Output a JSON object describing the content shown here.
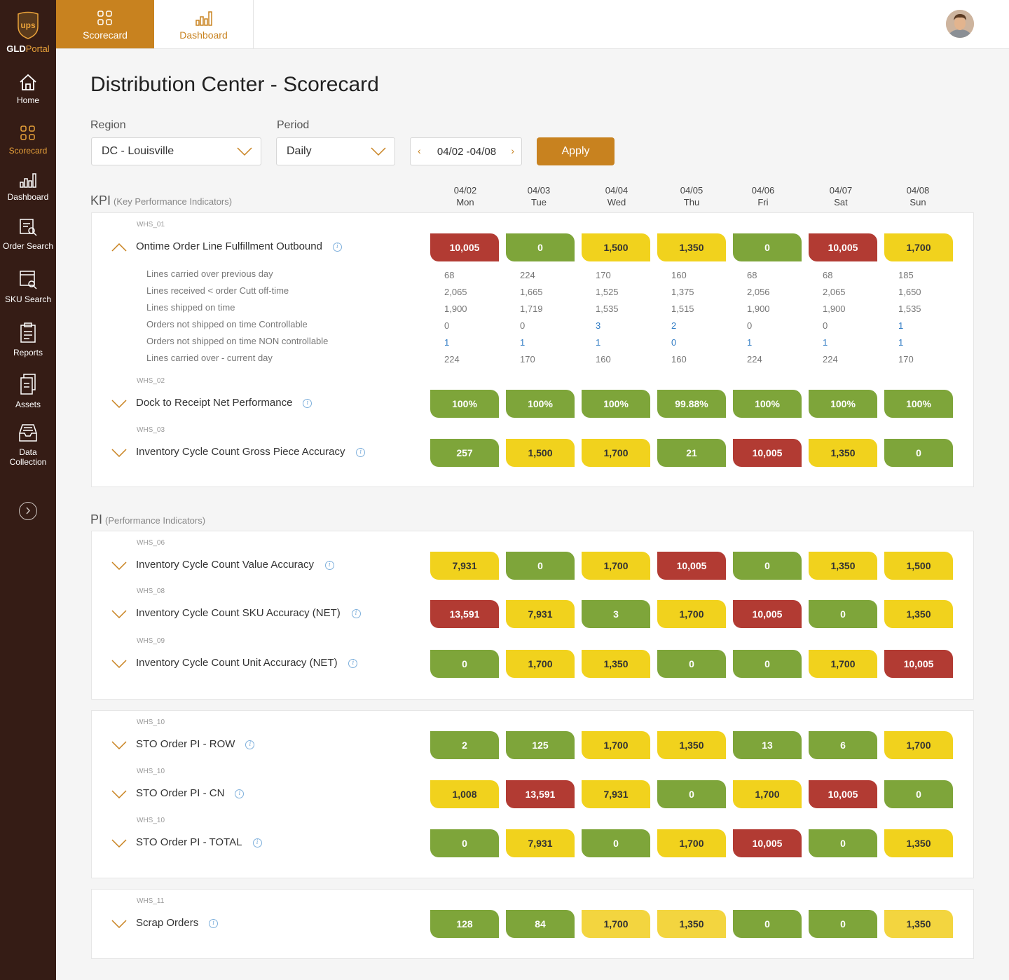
{
  "brand": {
    "logo_text": "GLD",
    "logo_portal": "Portal",
    "shield_text": "ups"
  },
  "sidebar": {
    "items": [
      {
        "label": "Home",
        "icon": "home-icon"
      },
      {
        "label": "Scorecard",
        "icon": "scorecard-icon",
        "active": true
      },
      {
        "label": "Dashboard",
        "icon": "dashboard-icon"
      },
      {
        "label": "Order Search",
        "icon": "order-search-icon"
      },
      {
        "label": "SKU Search",
        "icon": "sku-search-icon"
      },
      {
        "label": "Reports",
        "icon": "reports-icon"
      },
      {
        "label": "Assets",
        "icon": "assets-icon"
      },
      {
        "label": "Data Collection",
        "label_line1": "Data",
        "label_line2": "Collection",
        "icon": "data-collection-icon"
      }
    ]
  },
  "topbar": {
    "tabs": [
      {
        "label": "Scorecard",
        "active": true
      },
      {
        "label": "Dashboard",
        "active": false
      }
    ]
  },
  "page": {
    "title": "Distribution Center - Scorecard"
  },
  "filters": {
    "region_label": "Region",
    "region_value": "DC - Louisville",
    "period_label": "Period",
    "period_value": "Daily",
    "date_range": "04/02 -04/08",
    "prev": "‹",
    "next": "›",
    "apply_label": "Apply"
  },
  "colors": {
    "green": "#7ea53a",
    "red": "#b23b33",
    "yellow": "#f1d21d",
    "accent": "#c8821f",
    "sidebar": "#351c15"
  },
  "days": [
    {
      "date": "04/02",
      "day": "Mon"
    },
    {
      "date": "04/03",
      "day": "Tue"
    },
    {
      "date": "04/04",
      "day": "Wed"
    },
    {
      "date": "04/05",
      "day": "Thu"
    },
    {
      "date": "04/06",
      "day": "Fri"
    },
    {
      "date": "04/07",
      "day": "Sat"
    },
    {
      "date": "04/08",
      "day": "Sun"
    }
  ],
  "kpi": {
    "title": "KPI",
    "subtitle": "(Key Performance Indicators)",
    "rows": [
      {
        "code": "WHS_01",
        "title": "Ontime Order Line Fulfillment Outbound",
        "expanded": true,
        "values": [
          "10,005",
          "0",
          "1,500",
          "1,350",
          "0",
          "10,005",
          "1,700"
        ],
        "status": [
          "red",
          "green",
          "yellow",
          "yellow",
          "green",
          "red",
          "yellow"
        ],
        "details": [
          {
            "label": "Lines carried over previous day",
            "values": [
              "68",
              "224",
              "170",
              "160",
              "68",
              "68",
              "185"
            ]
          },
          {
            "label": "Lines received < order Cutt off-time",
            "values": [
              "2,065",
              "1,665",
              "1,525",
              "1,375",
              "2,056",
              "2,065",
              "1,650"
            ]
          },
          {
            "label": "Lines shipped on time",
            "values": [
              "1,900",
              "1,719",
              "1,535",
              "1,515",
              "1,900",
              "1,900",
              "1,535"
            ]
          },
          {
            "label": "Orders not shipped on time Controllable",
            "values": [
              "0",
              "0",
              "3",
              "2",
              "0",
              "0",
              "1"
            ]
          },
          {
            "label": "Orders not shipped on time NON controllable",
            "values": [
              "1",
              "1",
              "1",
              "0",
              "1",
              "1",
              "1"
            ]
          },
          {
            "label": "Lines carried over - current day",
            "values": [
              "224",
              "170",
              "160",
              "160",
              "224",
              "224",
              "170"
            ]
          }
        ]
      },
      {
        "code": "WHS_02",
        "title": "Dock to Receipt Net Performance",
        "values": [
          "100%",
          "100%",
          "100%",
          "99.88%",
          "100%",
          "100%",
          "100%"
        ],
        "status": [
          "green",
          "green",
          "green",
          "green",
          "green",
          "green",
          "green"
        ]
      },
      {
        "code": "WHS_03",
        "title": "Inventory Cycle Count Gross Piece Accuracy",
        "values": [
          "257",
          "1,500",
          "1,700",
          "21",
          "10,005",
          "1,350",
          "0"
        ],
        "status": [
          "green",
          "yellow",
          "yellow",
          "green",
          "red",
          "yellow",
          "green"
        ]
      }
    ]
  },
  "pi": {
    "title": "PI",
    "subtitle": "(Performance Indicators)",
    "groups": [
      [
        {
          "code": "WHS_06",
          "title": "Inventory Cycle Count Value Accuracy",
          "values": [
            "7,931",
            "0",
            "1,700",
            "10,005",
            "0",
            "1,350",
            "1,500"
          ],
          "status": [
            "yellow",
            "green",
            "yellow",
            "red",
            "green",
            "yellow",
            "yellow"
          ]
        },
        {
          "code": "WHS_08",
          "title": "Inventory Cycle Count SKU Accuracy (NET)",
          "values": [
            "13,591",
            "7,931",
            "3",
            "1,700",
            "10,005",
            "0",
            "1,350"
          ],
          "status": [
            "red",
            "yellow",
            "green",
            "yellow",
            "red",
            "green",
            "yellow"
          ]
        },
        {
          "code": "WHS_09",
          "title": "Inventory Cycle Count Unit Accuracy (NET)",
          "values": [
            "0",
            "1,700",
            "1,350",
            "0",
            "0",
            "1,700",
            "10,005"
          ],
          "status": [
            "green",
            "yellow",
            "yellow",
            "green",
            "green",
            "yellow",
            "red"
          ]
        }
      ],
      [
        {
          "code": "WHS_10",
          "title": "STO Order PI - ROW",
          "values": [
            "2",
            "125",
            "1,700",
            "1,350",
            "13",
            "6",
            "1,700"
          ],
          "status": [
            "green",
            "green",
            "yellow",
            "yellow",
            "green",
            "green",
            "yellow"
          ]
        },
        {
          "code": "WHS_10",
          "title": "STO Order PI - CN",
          "values": [
            "1,008",
            "13,591",
            "7,931",
            "0",
            "1,700",
            "10,005",
            "0"
          ],
          "status": [
            "yellow",
            "red",
            "yellow",
            "green",
            "yellow",
            "red",
            "green"
          ]
        },
        {
          "code": "WHS_10",
          "title": "STO Order PI - TOTAL",
          "values": [
            "0",
            "7,931",
            "0",
            "1,700",
            "10,005",
            "0",
            "1,350"
          ],
          "status": [
            "green",
            "yellow",
            "green",
            "yellow",
            "red",
            "green",
            "yellow"
          ]
        }
      ],
      [
        {
          "code": "WHS_11",
          "title": "Scrap Orders",
          "values": [
            "128",
            "84",
            "1,700",
            "1,350",
            "0",
            "0",
            "1,350"
          ],
          "status": [
            "green",
            "green",
            "lyellow",
            "lyellow",
            "green",
            "green",
            "lyellow"
          ]
        }
      ]
    ]
  }
}
